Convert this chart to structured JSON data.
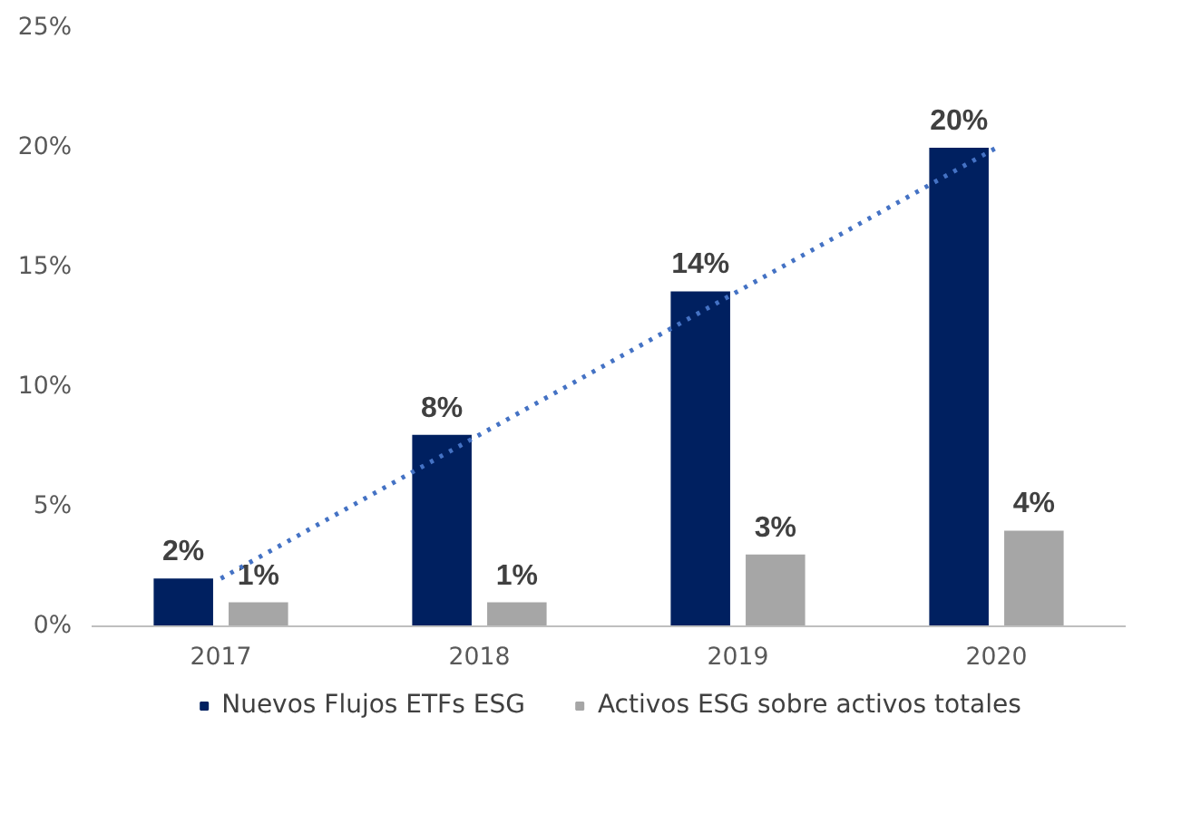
{
  "chart_data": {
    "type": "bar",
    "categories": [
      "2017",
      "2018",
      "2019",
      "2020"
    ],
    "series": [
      {
        "name": "Nuevos Flujos ETFs ESG",
        "color": "#002060",
        "values": [
          2,
          8,
          14,
          20
        ],
        "value_labels": [
          "2%",
          "8%",
          "14%",
          "20%"
        ]
      },
      {
        "name": "Activos ESG sobre activos totales",
        "color": "#a6a6a6",
        "values": [
          1,
          1,
          3,
          4
        ],
        "value_labels": [
          "1%",
          "1%",
          "3%",
          "4%"
        ]
      },
      {
        "type": "line",
        "color": "#4472c4",
        "values": [
          2,
          8,
          14,
          20
        ],
        "line_style": "dotted",
        "marker": "none"
      }
    ],
    "ylim": [
      0,
      25
    ],
    "yticks": [
      {
        "value": 0,
        "label": "0%"
      },
      {
        "value": 5,
        "label": "5%"
      },
      {
        "value": 10,
        "label": "10%"
      },
      {
        "value": 15,
        "label": "15%"
      },
      {
        "value": 20,
        "label": "20%"
      },
      {
        "value": 25,
        "label": "25%"
      }
    ],
    "grid": false,
    "legend": "bottom"
  }
}
